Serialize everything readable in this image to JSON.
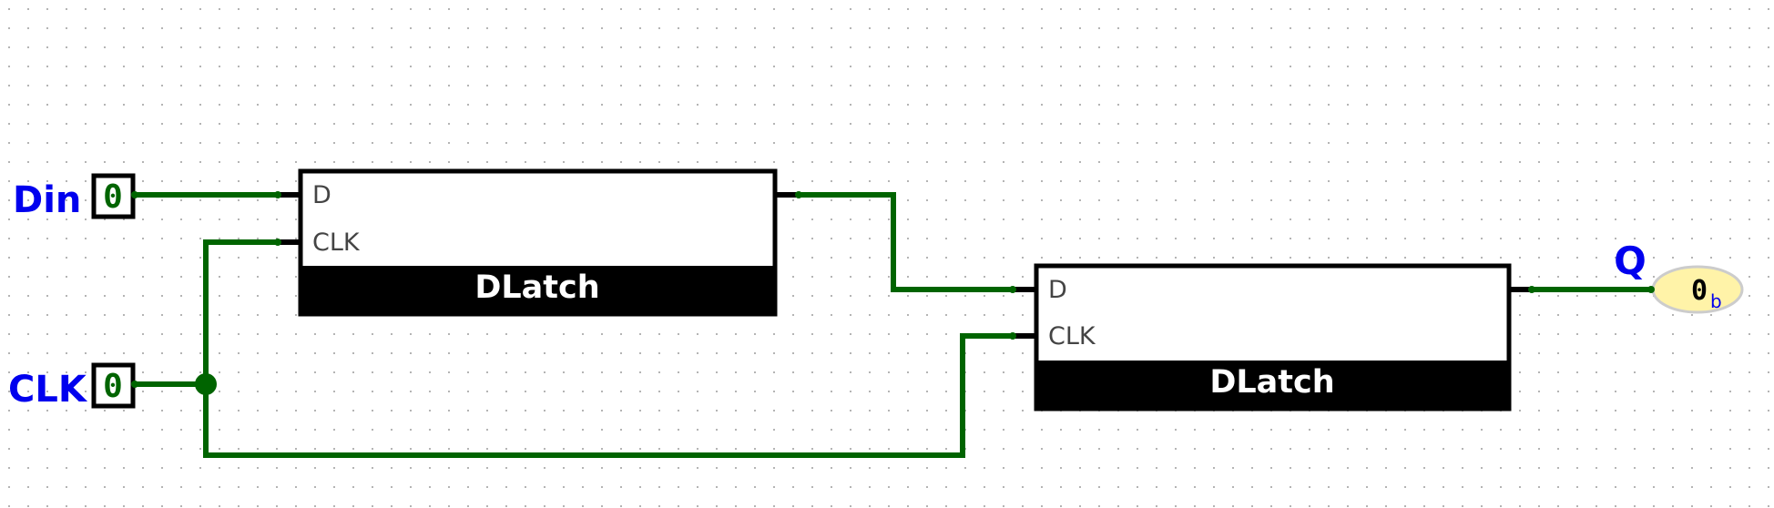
{
  "circuit": {
    "inputs": [
      {
        "label": "Din",
        "value": "0"
      },
      {
        "label": "CLK",
        "value": "0"
      }
    ],
    "latches": [
      {
        "title": "DLatch",
        "pin_d": "D",
        "pin_clk": "CLK"
      },
      {
        "title": "DLatch",
        "pin_d": "D",
        "pin_clk": "CLK"
      }
    ],
    "output": {
      "label": "Q",
      "value": "0",
      "base": "b"
    },
    "colors": {
      "wire": "#006400",
      "label": "#0000ee",
      "output_fill": "#fff3a8",
      "latch_footer": "#000000"
    }
  }
}
